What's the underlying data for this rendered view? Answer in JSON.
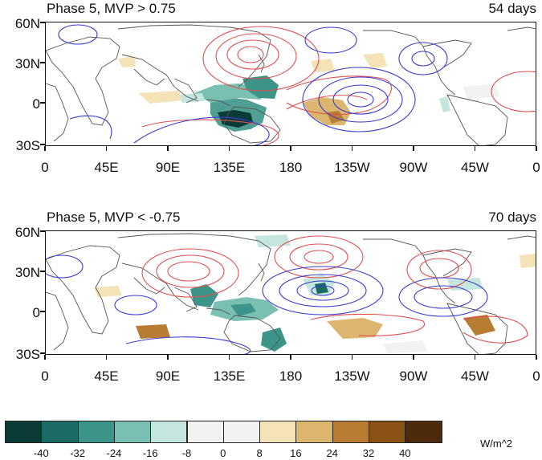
{
  "panels": [
    {
      "title": "Phase 5, MVP > 0.75",
      "days": "54 days"
    },
    {
      "title": "Phase 5, MVP < -0.75",
      "days": "70 days"
    }
  ],
  "lat_labels": [
    "60N",
    "30N",
    "0",
    "30S"
  ],
  "lon_labels": [
    "0",
    "45E",
    "90E",
    "135E",
    "180",
    "135W",
    "90W",
    "45W",
    "0"
  ],
  "colorbar": {
    "tick_labels": [
      "-40",
      "-32",
      "-24",
      "-16",
      "-8",
      "0",
      "8",
      "16",
      "24",
      "32",
      "40"
    ],
    "colors": [
      "#0a3b36",
      "#1a6b63",
      "#3d958a",
      "#79c0b3",
      "#c4e6de",
      "#f2f2f2",
      "#f2f2f2",
      "#f3e3b6",
      "#dcb66e",
      "#b87c33",
      "#8a5314",
      "#4e2a0c"
    ],
    "units": "W/m^2"
  },
  "colors": {
    "positive_contour": "#e05050",
    "negative_contour": "#3a3ad0",
    "coastline": "#555555"
  }
}
